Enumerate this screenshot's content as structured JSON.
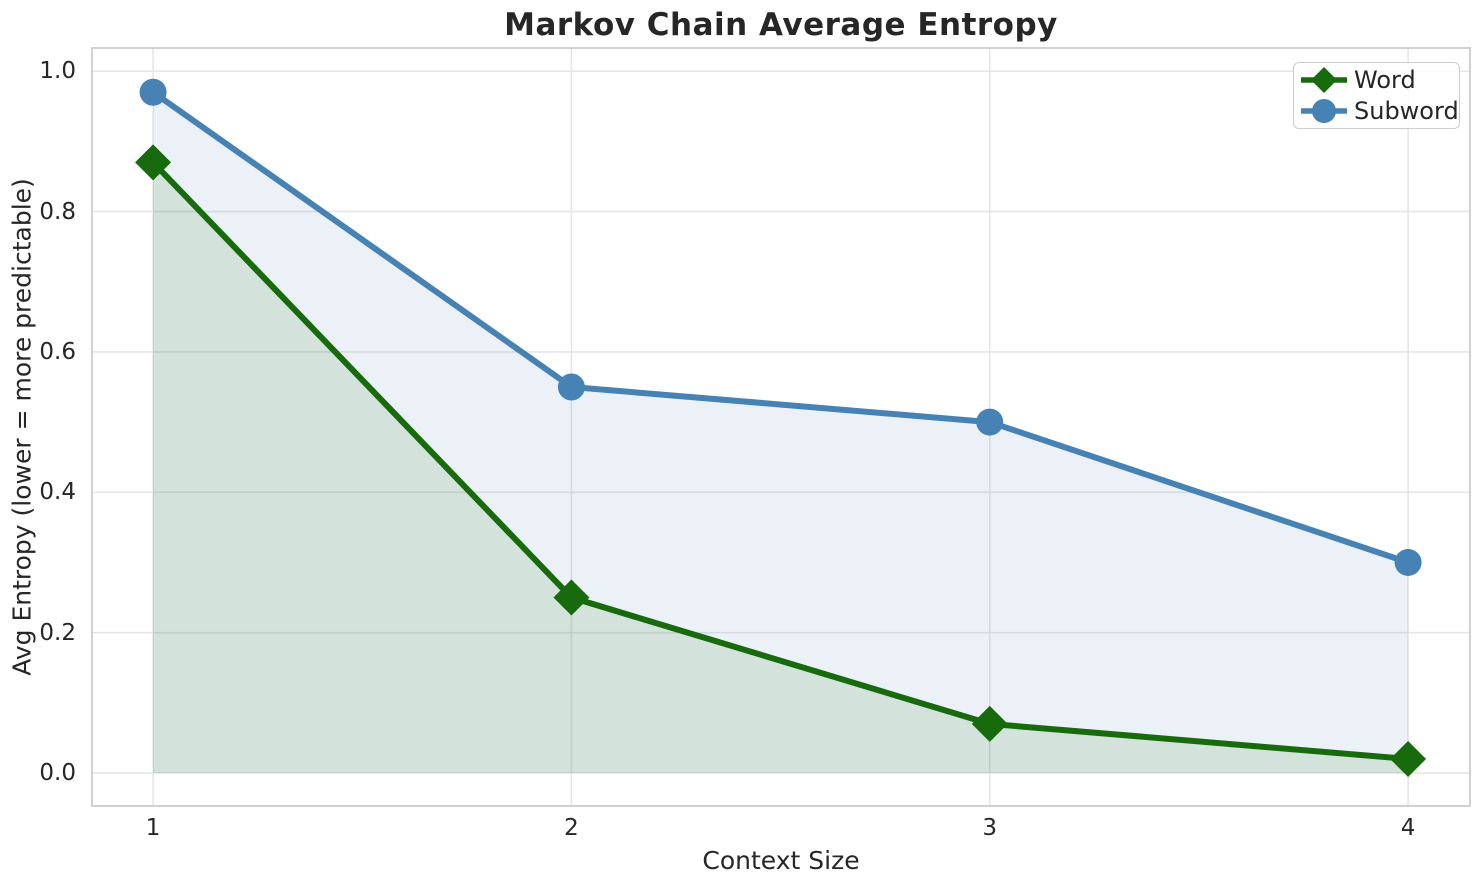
{
  "chart_data": {
    "type": "line",
    "title": "Markov Chain Average Entropy",
    "xlabel": "Context Size",
    "ylabel": "Avg Entropy (lower = more predictable)",
    "x": [
      1,
      2,
      3,
      4
    ],
    "xtick_labels": [
      "1",
      "2",
      "3",
      "4"
    ],
    "yticks": [
      0.0,
      0.2,
      0.4,
      0.6,
      0.8,
      1.0
    ],
    "ytick_labels": [
      "0.0",
      "0.2",
      "0.4",
      "0.6",
      "0.8",
      "1.0"
    ],
    "xlim": [
      0.854,
      4.148
    ],
    "ylim": [
      -0.047,
      1.033
    ],
    "grid": true,
    "legend_position": "upper right",
    "area_baseline": 0,
    "series": [
      {
        "name": "Word",
        "marker": "diamond",
        "color": "#176b0c",
        "fill_opacity": 0.11,
        "values": [
          0.87,
          0.25,
          0.07,
          0.02
        ]
      },
      {
        "name": "Subword",
        "marker": "circle",
        "color": "#4682b4",
        "fill_opacity": 0.11,
        "values": [
          0.97,
          0.55,
          0.5,
          0.3
        ]
      }
    ],
    "colors": {
      "grid": "#e6e6e6",
      "spine": "#cccccc",
      "text": "#262626",
      "background": "#ffffff"
    }
  }
}
